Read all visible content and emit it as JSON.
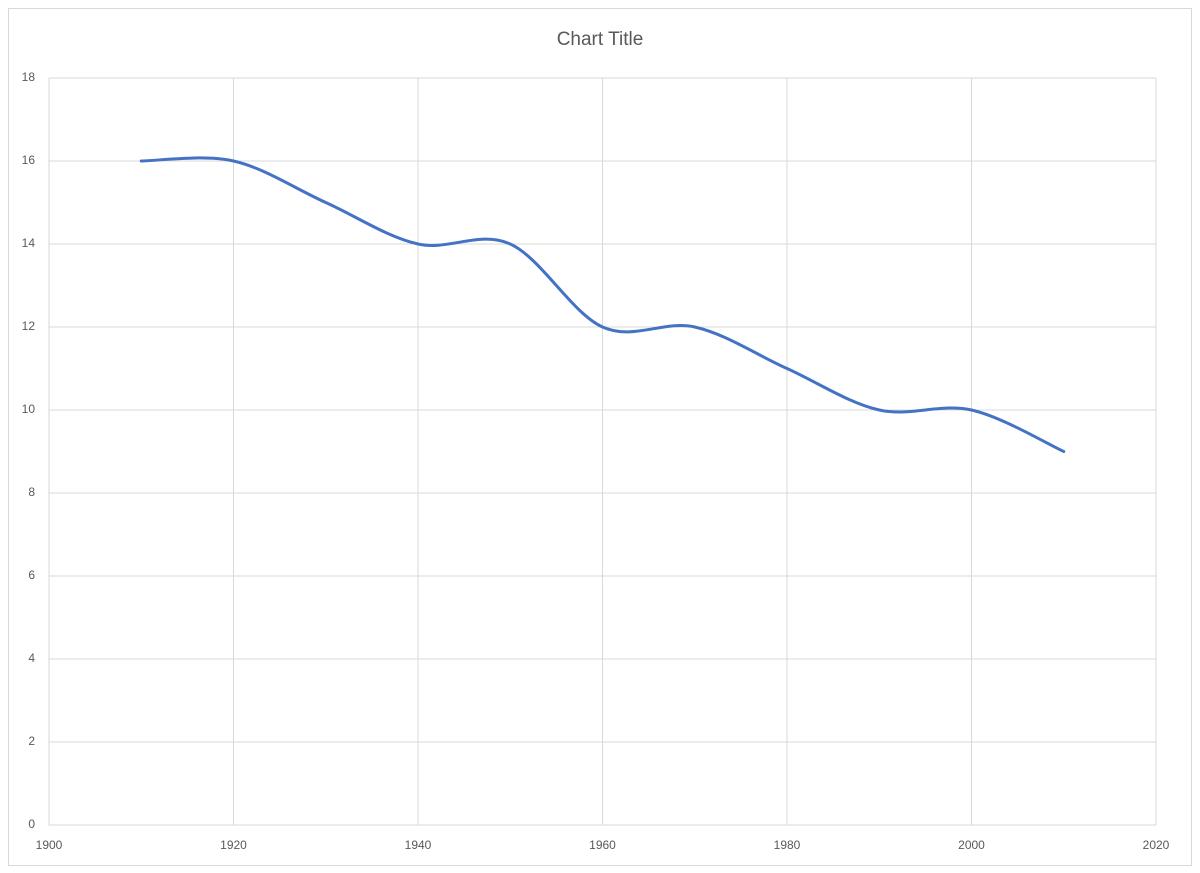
{
  "chart_data": {
    "type": "line",
    "title": "Chart Title",
    "x": [
      1910,
      1920,
      1930,
      1940,
      1950,
      1960,
      1970,
      1980,
      1990,
      2000,
      2010
    ],
    "values": [
      16,
      16,
      15,
      14,
      14,
      12,
      12,
      11,
      10,
      10,
      9
    ],
    "color": "#4472c4",
    "smooth": true,
    "xlim": [
      1900,
      2020
    ],
    "xticks": [
      1900,
      1920,
      1940,
      1960,
      1980,
      2000,
      2020
    ],
    "ylim": [
      0,
      18
    ],
    "yticks": [
      0,
      2,
      4,
      6,
      8,
      10,
      12,
      14,
      16,
      18
    ],
    "grid": true
  }
}
